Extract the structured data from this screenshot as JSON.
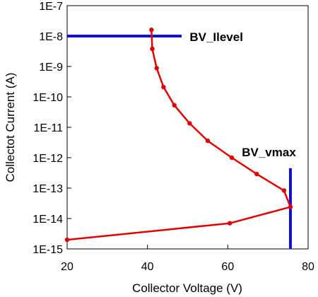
{
  "chart_data": {
    "type": "line",
    "title": "",
    "xlabel": "Collector Voltage (V)",
    "ylabel": "Collectot Current (A)",
    "xlim": [
      20,
      80
    ],
    "ylim": [
      1e-15,
      1e-07
    ],
    "yscale": "log",
    "grid": false,
    "x_ticks": [
      20,
      40,
      60,
      80
    ],
    "x_tick_labels": [
      "20",
      "40",
      "60",
      "80"
    ],
    "y_ticks": [
      1e-15,
      1e-14,
      1e-13,
      1e-12,
      1e-11,
      1e-10,
      1e-09,
      1e-08,
      1e-07
    ],
    "y_tick_labels": [
      "1E-15",
      "1E-14",
      "1E-13",
      "1E-12",
      "1E-11",
      "1E-10",
      "1E-9",
      "1E-8",
      "1E-7"
    ],
    "series": [
      {
        "color": "#e00000",
        "points": [
          {
            "x": 41.0,
            "y": 1.6e-08
          },
          {
            "x": 41.2,
            "y": 3.8e-09
          },
          {
            "x": 42.3,
            "y": 8.8e-10
          },
          {
            "x": 44.0,
            "y": 2.1e-10
          },
          {
            "x": 46.7,
            "y": 5.3e-11
          },
          {
            "x": 50.5,
            "y": 1.35e-11
          },
          {
            "x": 55.0,
            "y": 3.6e-12
          },
          {
            "x": 61.0,
            "y": 1e-12
          },
          {
            "x": 67.2,
            "y": 2.9e-13
          },
          {
            "x": 74.0,
            "y": 8.3e-14
          },
          {
            "x": 75.6,
            "y": 2.4e-14
          },
          {
            "x": 60.5,
            "y": 7e-15
          },
          {
            "x": 20.0,
            "y": 2e-15
          }
        ]
      }
    ],
    "annotations": [
      {
        "name": "bv-llevel",
        "text": "BV_Ilevel",
        "type": "hline",
        "y": 1e-08,
        "x_from": 20,
        "x_to": 48.5,
        "color": "#1010dd",
        "label_x": 50.5,
        "label_y": 1e-08
      },
      {
        "name": "bv-vmax",
        "text": "BV_vmax",
        "type": "vline",
        "x": 75.6,
        "y_from": 1e-15,
        "y_to": 4.5e-13,
        "color": "#1010dd",
        "label_x": 63.5,
        "label_y": 1e-12
      }
    ]
  }
}
